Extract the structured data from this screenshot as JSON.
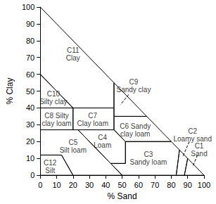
{
  "chart_data": {
    "type": "polygon",
    "xlabel": "% Sand",
    "ylabel": "% Clay",
    "xlim": [
      0,
      100
    ],
    "ylim": [
      0,
      100
    ],
    "xticks": [
      0,
      10,
      20,
      30,
      40,
      50,
      60,
      70,
      80,
      90,
      100
    ],
    "yticks": [
      0,
      10,
      20,
      30,
      40,
      50,
      60,
      70,
      80,
      90,
      100
    ],
    "grid": false,
    "color": "#000000",
    "regions": [
      {
        "label": [
          "C11",
          "Clay"
        ],
        "vertices": [
          [
            0,
            100
          ],
          [
            0,
            60
          ],
          [
            20,
            40
          ],
          [
            45,
            40
          ],
          [
            45,
            55
          ]
        ]
      },
      {
        "label": [
          "C10",
          "Silty clay"
        ],
        "vertices": [
          [
            0,
            60
          ],
          [
            0,
            40
          ],
          [
            20,
            40
          ]
        ]
      },
      {
        "label": [
          "C8 Silty",
          "clay loam"
        ],
        "vertices": [
          [
            0,
            40
          ],
          [
            20,
            40
          ],
          [
            20,
            27
          ],
          [
            0,
            27
          ]
        ]
      },
      {
        "label": [
          "C7",
          "Clay loam"
        ],
        "vertices": [
          [
            20,
            40
          ],
          [
            45,
            40
          ],
          [
            45,
            27
          ],
          [
            20,
            27
          ]
        ]
      },
      {
        "label": [
          "C9",
          "Sandy clay"
        ],
        "vertices": [
          [
            45,
            55
          ],
          [
            45,
            35
          ],
          [
            65,
            35
          ]
        ]
      },
      {
        "label": [
          "C6 Sandy",
          "clay loam"
        ],
        "vertices": [
          [
            45,
            35
          ],
          [
            45,
            27
          ],
          [
            52,
            20
          ],
          [
            80,
            20
          ],
          [
            65,
            35
          ]
        ]
      },
      {
        "label": [
          "C4",
          "Loam"
        ],
        "vertices": [
          [
            23,
            27
          ],
          [
            45,
            27
          ],
          [
            52,
            20
          ],
          [
            52,
            7
          ],
          [
            43,
            7
          ]
        ]
      },
      {
        "label": [
          "C5",
          "Silt loam"
        ],
        "vertices": [
          [
            0,
            27
          ],
          [
            23,
            27
          ],
          [
            43,
            7
          ],
          [
            50,
            0
          ],
          [
            20,
            0
          ],
          [
            13,
            12
          ],
          [
            0,
            12
          ]
        ]
      },
      {
        "label": [
          "C12",
          "Silt"
        ],
        "vertices": [
          [
            0,
            12
          ],
          [
            13,
            12
          ],
          [
            20,
            0
          ],
          [
            0,
            0
          ]
        ]
      },
      {
        "label": [
          "C3",
          "Sandy loam"
        ],
        "vertices": [
          [
            52,
            20
          ],
          [
            80,
            20
          ],
          [
            85,
            15
          ],
          [
            83,
            0
          ],
          [
            50,
            0
          ],
          [
            43,
            7
          ],
          [
            52,
            7
          ]
        ]
      },
      {
        "label": [
          "C2",
          "Loamy sand"
        ],
        "vertices": [
          [
            85,
            15
          ],
          [
            90,
            10
          ],
          [
            88,
            0
          ],
          [
            83,
            0
          ]
        ]
      },
      {
        "label": [
          "C1",
          "Sand"
        ],
        "vertices": [
          [
            90,
            10
          ],
          [
            100,
            0
          ],
          [
            88,
            0
          ]
        ]
      }
    ]
  }
}
